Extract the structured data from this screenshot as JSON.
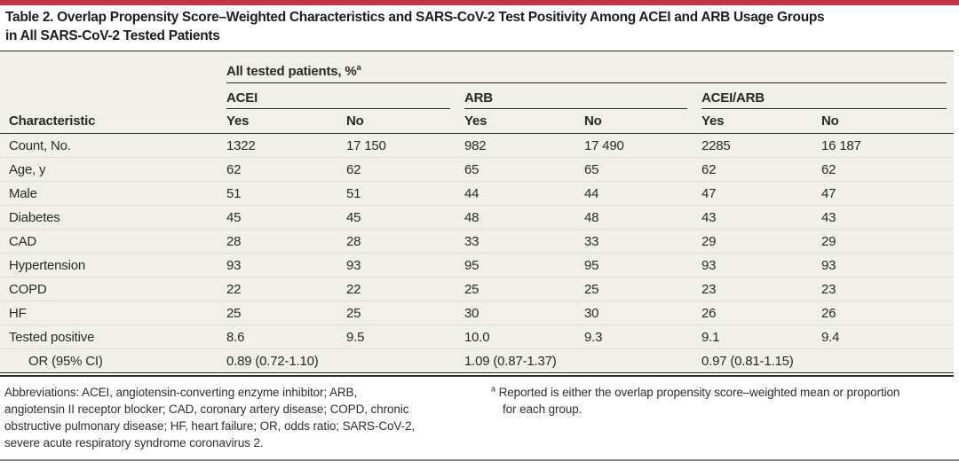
{
  "title": {
    "lines": [
      "Table 2. Overlap Propensity Score–Weighted Characteristics and SARS-CoV-2 Test Positivity Among ACEI and ARB Usage Groups",
      "in All SARS-CoV-2 Tested Patients"
    ]
  },
  "table": {
    "spanner_label": "All tested patients, %",
    "spanner_sup": "a",
    "groups": [
      "ACEI",
      "ARB",
      "ACEI/ARB"
    ],
    "characteristic_header": "Characteristic",
    "yes_label": "Yes",
    "no_label": "No",
    "rows": [
      {
        "label": "Count, No.",
        "values": [
          "1322",
          "17 150",
          "982",
          "17 490",
          "2285",
          "16 187"
        ]
      },
      {
        "label": "Age, y",
        "values": [
          "62",
          "62",
          "65",
          "65",
          "62",
          "62"
        ]
      },
      {
        "label": "Male",
        "values": [
          "51",
          "51",
          "44",
          "44",
          "47",
          "47"
        ]
      },
      {
        "label": "Diabetes",
        "values": [
          "45",
          "45",
          "48",
          "48",
          "43",
          "43"
        ]
      },
      {
        "label": "CAD",
        "values": [
          "28",
          "28",
          "33",
          "33",
          "29",
          "29"
        ]
      },
      {
        "label": "Hypertension",
        "values": [
          "93",
          "93",
          "95",
          "95",
          "93",
          "93"
        ]
      },
      {
        "label": "COPD",
        "values": [
          "22",
          "22",
          "25",
          "25",
          "23",
          "23"
        ]
      },
      {
        "label": "HF",
        "values": [
          "25",
          "25",
          "30",
          "30",
          "26",
          "26"
        ]
      },
      {
        "label": "Tested positive",
        "values": [
          "8.6",
          "9.5",
          "10.0",
          "9.3",
          "9.1",
          "9.4"
        ]
      },
      {
        "label": "OR (95% CI)",
        "values": [
          "0.89 (0.72-1.10)",
          "",
          "1.09 (0.87-1.37)",
          "",
          "0.97 (0.81-1.15)",
          ""
        ]
      }
    ]
  },
  "footnotes": {
    "abbrev_lines": [
      "Abbreviations: ACEI, angiotensin-converting enzyme inhibitor; ARB,",
      "angiotensin II receptor blocker; CAD, coronary artery disease; COPD, chronic",
      "obstructive pulmonary disease; HF, heart failure; OR, odds ratio; SARS-CoV-2,",
      "severe acute respiratory syndrome coronavirus 2."
    ],
    "note_a_sup": "a",
    "note_a_lines": [
      "Reported is either the overlap propensity score–weighted mean or proportion",
      "for each group."
    ]
  },
  "colors": {
    "accent_red": "#c9314a",
    "table_bg": "#f1f0e8",
    "rule_dark": "#2b2b2b",
    "rule_light": "#dbdad0",
    "footer_rule": "#8c8c8c"
  }
}
